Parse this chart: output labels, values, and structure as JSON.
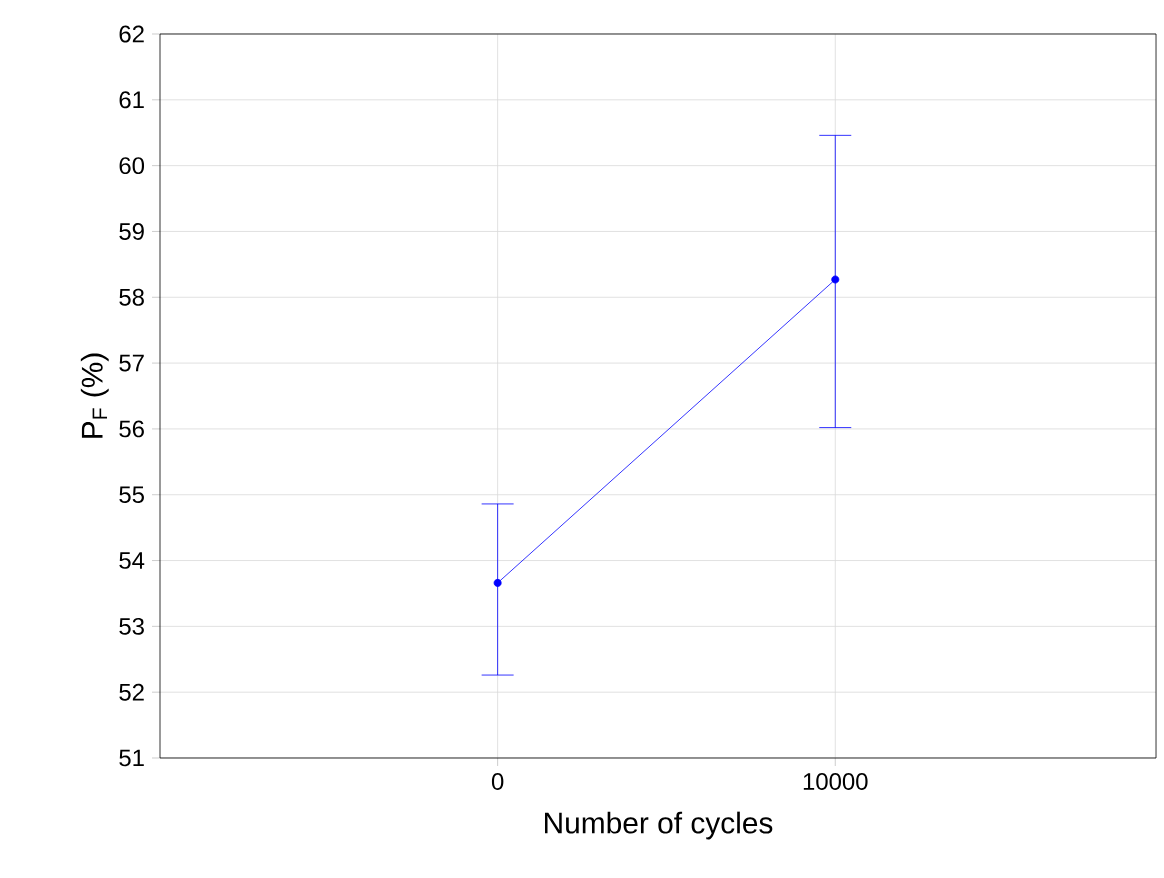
{
  "chart_data": {
    "type": "line",
    "xlabel": "Number of cycles",
    "ylabel": "P$_{F}$ (%)",
    "categories": [
      "0",
      "10000"
    ],
    "series": [
      {
        "color": "#0000ff",
        "values": [
          53.66,
          58.27
        ],
        "errors": [
          [
            52.26,
            54.86
          ],
          [
            56.02,
            60.46
          ]
        ]
      }
    ],
    "ylim": [
      51,
      62
    ],
    "yticks": [
      51,
      52,
      53,
      54,
      55,
      56,
      57,
      58,
      59,
      60,
      61,
      62
    ],
    "grid": true,
    "marker": "circle",
    "line_style": "solid"
  }
}
